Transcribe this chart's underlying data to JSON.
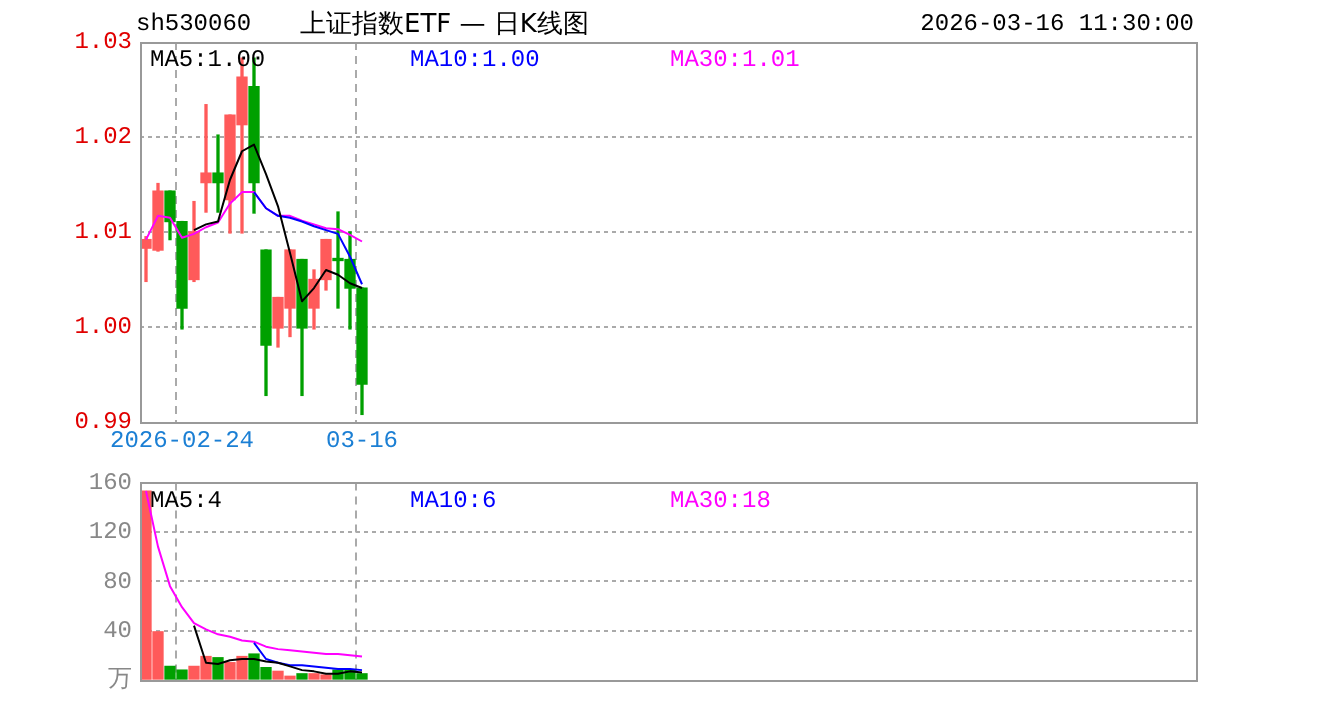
{
  "chart_data": [
    {
      "type": "candlestick",
      "title": "上证指数ETF — 日K线图",
      "annotations": [
        "sh530060",
        "2026-03-16 11:30:00"
      ],
      "categories": [
        null,
        null,
        null,
        "2026-02-24",
        null,
        null,
        null,
        null,
        null,
        null,
        null,
        null,
        null,
        null,
        null,
        null,
        null,
        null,
        "03-16",
        null,
        null,
        null,
        null,
        null,
        null,
        null,
        null,
        null,
        null,
        null,
        null,
        null,
        null,
        null,
        null,
        null,
        null,
        null,
        null,
        null,
        null,
        null,
        null,
        null,
        null,
        null,
        null,
        null,
        null,
        null,
        null,
        null,
        null,
        null,
        null,
        null,
        null,
        null,
        null,
        null,
        null,
        null,
        null,
        null,
        null,
        null,
        null,
        null,
        null,
        null,
        null,
        null,
        null,
        null,
        null,
        null,
        null,
        null,
        null,
        null,
        null,
        null,
        null,
        null,
        null,
        null,
        null,
        null
      ],
      "ohlc": [
        [
          1.0083,
          1.0095,
          1.0048,
          1.0092
        ],
        [
          1.0081,
          1.0151,
          1.008,
          1.0143
        ],
        [
          1.0143,
          1.0143,
          1.0092,
          1.0111
        ],
        [
          1.0111,
          1.0111,
          0.9998,
          1.002
        ],
        [
          1.005,
          1.0132,
          1.0048,
          1.01
        ],
        [
          1.0152,
          1.0234,
          1.0121,
          1.0162
        ],
        [
          1.0162,
          1.0202,
          1.0121,
          1.0152
        ],
        [
          1.0134,
          1.0223,
          1.0099,
          1.0223
        ],
        [
          1.0213,
          1.0283,
          1.0099,
          1.0263
        ],
        [
          1.0253,
          1.0283,
          1.012,
          1.0152
        ],
        [
          1.0081,
          1.0081,
          0.9928,
          0.9981
        ],
        [
          0.9999,
          1.0031,
          0.9979,
          1.0031
        ],
        [
          1.002,
          1.0081,
          0.999,
          1.0081
        ],
        [
          1.0071,
          1.0071,
          0.9928,
          0.9999
        ],
        [
          1.002,
          1.006,
          0.9998,
          1.005
        ],
        [
          1.005,
          1.0092,
          1.0039,
          1.0092
        ],
        [
          1.0071,
          1.0121,
          1.002,
          1.007
        ],
        [
          1.0071,
          1.01,
          0.9998,
          1.0041
        ],
        [
          1.0041,
          1.0041,
          0.9908,
          0.994
        ],
        null,
        null,
        null,
        null,
        null,
        null,
        null,
        null,
        null,
        null,
        null,
        null,
        null,
        null,
        null,
        null,
        null,
        null,
        null,
        null,
        null,
        null,
        null,
        null,
        null,
        null,
        null,
        null,
        null,
        null,
        null,
        null,
        null,
        null,
        null,
        null,
        null,
        null,
        null,
        null,
        null,
        null,
        null,
        null,
        null,
        null,
        null,
        null,
        null,
        null,
        null,
        null,
        null,
        null,
        null,
        null,
        null,
        null,
        null,
        null,
        null,
        null,
        null,
        null,
        null,
        null,
        null,
        null,
        null
      ],
      "colors": [
        "#ff5a5a",
        "#ff5a5a",
        "#00a000",
        "#00a000",
        "#ff5a5a",
        "#ff5a5a",
        "#00a000",
        "#ff5a5a",
        "#ff5a5a",
        "#00a000",
        "#00a000",
        "#ff5a5a",
        "#ff5a5a",
        "#00a000",
        "#ff5a5a",
        "#ff5a5a",
        "#00a000",
        "#00a000",
        "#00a000",
        null,
        null,
        null,
        null,
        null,
        null,
        null,
        null,
        null,
        null,
        null,
        null,
        null,
        null,
        null,
        null,
        null,
        null,
        null,
        null,
        null,
        null,
        null,
        null,
        null,
        null,
        null,
        null,
        null,
        null,
        null,
        null,
        null,
        null,
        null,
        null,
        null,
        null,
        null,
        null,
        null,
        null,
        null,
        null,
        null,
        null,
        null,
        null,
        null,
        null,
        null,
        null,
        null,
        null,
        null,
        null,
        null,
        null,
        null,
        null,
        null,
        null,
        null,
        null,
        null,
        null,
        null,
        null,
        null
      ],
      "series": [
        {
          "name": "MA5:1.00",
          "type": "line",
          "color": "#000000",
          "values": [
            null,
            null,
            null,
            null,
            1.0102,
            1.0108,
            1.0111,
            1.0155,
            1.0185,
            1.0192,
            1.0161,
            1.0127,
            1.0078,
            1.0027,
            1.0041,
            1.006,
            1.0055,
            1.0046,
            1.0041,
            null,
            null,
            null,
            null,
            null,
            null,
            null,
            null,
            null,
            null,
            null,
            null,
            null,
            null,
            null,
            null,
            null,
            null,
            null,
            null,
            null,
            null,
            null,
            null,
            null,
            null,
            null,
            null,
            null,
            null,
            null,
            null,
            null,
            null,
            null,
            null,
            null,
            null,
            null,
            null,
            null,
            null,
            null,
            null,
            null,
            null,
            null,
            null,
            null,
            null,
            null,
            null,
            null,
            null,
            null,
            null,
            null,
            null,
            null,
            null,
            null,
            null,
            null,
            null,
            null,
            null,
            null,
            null,
            null
          ]
        },
        {
          "name": "MA10:1.00",
          "type": "line",
          "color": "#0000ff",
          "values": [
            null,
            null,
            null,
            null,
            null,
            null,
            null,
            null,
            null,
            1.0142,
            1.0125,
            1.0117,
            1.0115,
            1.0111,
            1.0106,
            1.0102,
            1.0098,
            1.0074,
            1.0045,
            null,
            null,
            null,
            null,
            null,
            null,
            null,
            null,
            null,
            null,
            null,
            null,
            null,
            null,
            null,
            null,
            null,
            null,
            null,
            null,
            null,
            null,
            null,
            null,
            null,
            null,
            null,
            null,
            null,
            null,
            null,
            null,
            null,
            null,
            null,
            null,
            null,
            null,
            null,
            null,
            null,
            null,
            null,
            null,
            null,
            null,
            null,
            null,
            null,
            null,
            null,
            null,
            null,
            null,
            null,
            null,
            null,
            null,
            null,
            null,
            null,
            null,
            null,
            null,
            null,
            null,
            null,
            null,
            null
          ]
        },
        {
          "name": "MA30:1.01",
          "type": "line",
          "color": "#ff00ff",
          "values": [
            1.0092,
            1.0117,
            1.0115,
            1.0094,
            1.0098,
            1.0105,
            1.011,
            1.013,
            1.0142,
            1.0142,
            1.0125,
            1.0117,
            1.0117,
            1.0112,
            1.0108,
            1.0104,
            1.0103,
            1.0097,
            1.009,
            null,
            null,
            null,
            null,
            null,
            null,
            null,
            null,
            null,
            null,
            null,
            null,
            null,
            null,
            null,
            null,
            null,
            null,
            null,
            null,
            null,
            null,
            null,
            null,
            null,
            null,
            null,
            null,
            null,
            null,
            null,
            null,
            null,
            null,
            null,
            null,
            null,
            null,
            null,
            null,
            null,
            null,
            null,
            null,
            null,
            null,
            null,
            null,
            null,
            null,
            null,
            null,
            null,
            null,
            null,
            null,
            null,
            null,
            null,
            null,
            null,
            null,
            null,
            null,
            null,
            null,
            null,
            null,
            null
          ]
        }
      ],
      "ylim": [
        0.99,
        1.03
      ],
      "yticks": [
        0.99,
        {
          "value": 1,
          "label": "1.00"
        },
        1.01,
        1.02,
        1.03
      ],
      "grid": true,
      "legend": "top left",
      "marker": "none"
    },
    {
      "type": "bar",
      "categories": [
        null,
        null,
        null,
        null,
        null,
        null,
        null,
        null,
        null,
        null,
        null,
        null,
        null,
        null,
        null,
        null,
        null,
        null,
        null,
        null,
        null,
        null,
        null,
        null,
        null,
        null,
        null,
        null,
        null,
        null,
        null,
        null,
        null,
        null,
        null,
        null,
        null,
        null,
        null,
        null,
        null,
        null,
        null,
        null,
        null,
        null,
        null,
        null,
        null,
        null,
        null,
        null,
        null,
        null,
        null,
        null,
        null,
        null,
        null,
        null,
        null,
        null,
        null,
        null,
        null,
        null,
        null,
        null,
        null,
        null,
        null,
        null,
        null,
        null,
        null,
        null,
        null,
        null,
        null,
        null,
        null,
        null,
        null,
        null,
        null,
        null,
        null,
        null
      ],
      "values": [
        153,
        39,
        11,
        8,
        11,
        19,
        18,
        14,
        19,
        21,
        10,
        7,
        3,
        5,
        5,
        4,
        8,
        8,
        5,
        null,
        null,
        null,
        null,
        null,
        null,
        null,
        null,
        null,
        null,
        null,
        null,
        null,
        null,
        null,
        null,
        null,
        null,
        null,
        null,
        null,
        null,
        null,
        null,
        null,
        null,
        null,
        null,
        null,
        null,
        null,
        null,
        null,
        null,
        null,
        null,
        null,
        null,
        null,
        null,
        null,
        null,
        null,
        null,
        null,
        null,
        null,
        null,
        null,
        null,
        null,
        null,
        null,
        null,
        null,
        null,
        null,
        null,
        null,
        null,
        null,
        null,
        null,
        null,
        null,
        null,
        null,
        null,
        null
      ],
      "colors": [
        "#ff5a5a",
        "#ff5a5a",
        "#00a000",
        "#00a000",
        "#ff5a5a",
        "#ff5a5a",
        "#00a000",
        "#ff5a5a",
        "#ff5a5a",
        "#00a000",
        "#00a000",
        "#ff5a5a",
        "#ff5a5a",
        "#00a000",
        "#ff5a5a",
        "#ff5a5a",
        "#00a000",
        "#00a000",
        "#00a000",
        null,
        null,
        null,
        null,
        null,
        null,
        null,
        null,
        null,
        null,
        null,
        null,
        null,
        null,
        null,
        null,
        null,
        null,
        null,
        null,
        null,
        null,
        null,
        null,
        null,
        null,
        null,
        null,
        null,
        null,
        null,
        null,
        null,
        null,
        null,
        null,
        null,
        null,
        null,
        null,
        null,
        null,
        null,
        null,
        null,
        null,
        null,
        null,
        null,
        null,
        null,
        null,
        null,
        null,
        null,
        null,
        null,
        null,
        null,
        null,
        null,
        null,
        null,
        null,
        null,
        null,
        null,
        null,
        null
      ],
      "series": [
        {
          "name": "MA5:4",
          "type": "line",
          "color": "#000000",
          "values": [
            null,
            null,
            null,
            null,
            44,
            14,
            13,
            16,
            17,
            17,
            15,
            14,
            11,
            8,
            7,
            5,
            5,
            7,
            6,
            null,
            null,
            null,
            null,
            null,
            null,
            null,
            null,
            null,
            null,
            null,
            null,
            null,
            null,
            null,
            null,
            null,
            null,
            null,
            null,
            null,
            null,
            null,
            null,
            null,
            null,
            null,
            null,
            null,
            null,
            null,
            null,
            null,
            null,
            null,
            null,
            null,
            null,
            null,
            null,
            null,
            null,
            null,
            null,
            null,
            null,
            null,
            null,
            null,
            null,
            null,
            null,
            null,
            null,
            null,
            null,
            null,
            null,
            null,
            null,
            null,
            null,
            null,
            null,
            null,
            null,
            null,
            null,
            null
          ]
        },
        {
          "name": "MA10:6",
          "type": "line",
          "color": "#0000ff",
          "values": [
            null,
            null,
            null,
            null,
            null,
            null,
            null,
            null,
            null,
            30,
            17,
            14,
            12,
            12,
            11,
            10,
            9,
            9,
            8,
            null,
            null,
            null,
            null,
            null,
            null,
            null,
            null,
            null,
            null,
            null,
            null,
            null,
            null,
            null,
            null,
            null,
            null,
            null,
            null,
            null,
            null,
            null,
            null,
            null,
            null,
            null,
            null,
            null,
            null,
            null,
            null,
            null,
            null,
            null,
            null,
            null,
            null,
            null,
            null,
            null,
            null,
            null,
            null,
            null,
            null,
            null,
            null,
            null,
            null,
            null,
            null,
            null,
            null,
            null,
            null,
            null,
            null,
            null,
            null,
            null,
            null,
            null,
            null,
            null,
            null,
            null,
            null,
            null
          ]
        },
        {
          "name": "MA30:18",
          "type": "line",
          "color": "#ff00ff",
          "values": [
            153,
            108,
            76,
            59,
            46,
            41,
            37,
            35,
            32,
            31,
            27,
            25,
            24,
            23,
            22,
            21,
            21,
            20,
            19,
            null,
            null,
            null,
            null,
            null,
            null,
            null,
            null,
            null,
            null,
            null,
            null,
            null,
            null,
            null,
            null,
            null,
            null,
            null,
            null,
            null,
            null,
            null,
            null,
            null,
            null,
            null,
            null,
            null,
            null,
            null,
            null,
            null,
            null,
            null,
            null,
            null,
            null,
            null,
            null,
            null,
            null,
            null,
            null,
            null,
            null,
            null,
            null,
            null,
            null,
            null,
            null,
            null,
            null,
            null,
            null,
            null,
            null,
            null,
            null,
            null,
            null,
            null,
            null,
            null,
            null,
            null,
            null,
            null
          ]
        }
      ],
      "ylim": [
        0,
        160
      ],
      "yticks": [
        {
          "value": 0,
          "label": "万"
        },
        40,
        80,
        120,
        160
      ],
      "grid": true,
      "legend": "top left",
      "marker": "none",
      "tick_labels": "y"
    }
  ]
}
